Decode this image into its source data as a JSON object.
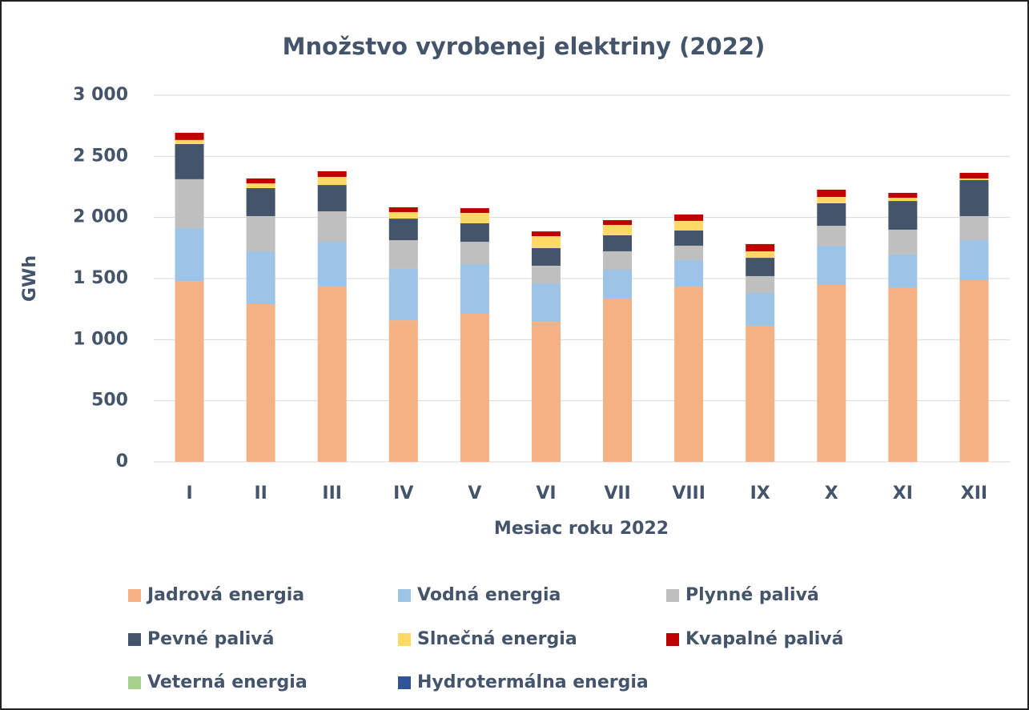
{
  "chart_data": {
    "type": "stacked_bar",
    "title": "Množstvo vyrobenej elektriny (2022)",
    "x_label": "Mesiac roku 2022",
    "y_label": "GWh",
    "categories": [
      "I",
      "II",
      "III",
      "IV",
      "V",
      "VI",
      "VII",
      "VIII",
      "IX",
      "X",
      "XI",
      "XII"
    ],
    "series": [
      {
        "name": "Jadrová energia",
        "color": "#f4b183",
        "values": [
          1480,
          1290,
          1434,
          1159,
          1212,
          1146,
          1336,
          1434,
          1114,
          1448,
          1428,
          1487
        ]
      },
      {
        "name": "Vodná energia",
        "color": "#9dc3e6",
        "values": [
          433,
          433,
          367,
          420,
          406,
          315,
          236,
          217,
          268,
          321,
          269,
          327
        ]
      },
      {
        "name": "Plynné palivá",
        "color": "#bfbfbf",
        "values": [
          400,
          288,
          249,
          235,
          183,
          144,
          151,
          118,
          138,
          163,
          203,
          197
        ]
      },
      {
        "name": "Pevné palivá",
        "color": "#44546a",
        "values": [
          288,
          229,
          216,
          177,
          151,
          144,
          131,
          124,
          150,
          184,
          235,
          295
        ]
      },
      {
        "name": "Slnečná energia",
        "color": "#ffd966",
        "values": [
          33,
          39,
          66,
          53,
          85,
          98,
          85,
          79,
          53,
          52,
          26,
          13
        ]
      },
      {
        "name": "Kvapalné palivá",
        "color": "#c00000",
        "values": [
          59,
          40,
          46,
          39,
          39,
          39,
          39,
          52,
          59,
          59,
          40,
          46
        ]
      },
      {
        "name": "Veterná energia",
        "color": "#a9d18e",
        "values": [
          1,
          1,
          1,
          1,
          1,
          1,
          1,
          1,
          1,
          1,
          1,
          1
        ]
      },
      {
        "name": "Hydrotermálna energia",
        "color": "#2f5597",
        "values": [
          0,
          0,
          0,
          0,
          0,
          0,
          0,
          0,
          0,
          0,
          0,
          0
        ]
      }
    ],
    "ylim": [
      0,
      3000
    ],
    "yticks": [
      0,
      500,
      {
        "value": 1000,
        "label": "1 000"
      },
      {
        "value": 1500,
        "label": "1 500"
      },
      {
        "value": 2000,
        "label": "2 000"
      },
      {
        "value": 2500,
        "label": "2 500"
      },
      {
        "value": 3000,
        "label": "3 000"
      }
    ],
    "grid": true
  }
}
